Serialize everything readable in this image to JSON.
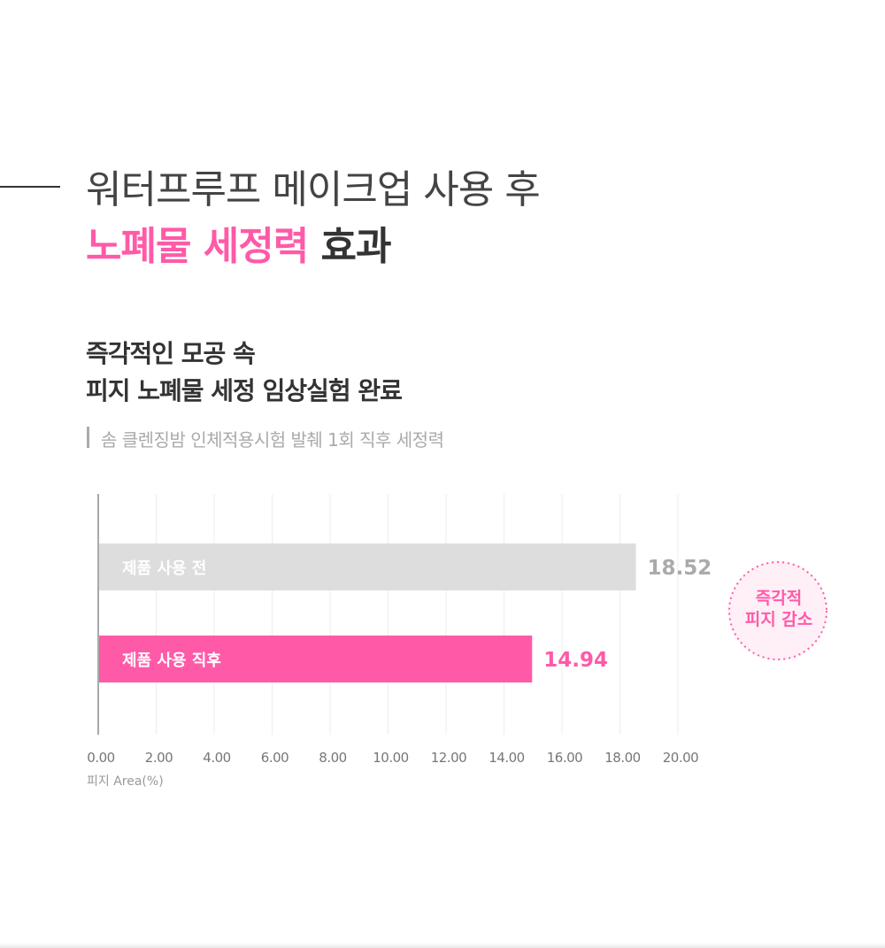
{
  "heading": {
    "line1": "워터프루프 메이크업 사용 후",
    "line2_highlight": "노폐물 세정력",
    "line2_rest": "효과"
  },
  "subheading": {
    "line1": "즉각적인 모공 속",
    "line2": "피지 노폐물 세정 임상실험 완료"
  },
  "caption": "솜 클렌징밤 인체적용시험 발췌 1회 직후 세정력",
  "badge": {
    "line1": "즉각적",
    "line2": "피지 감소"
  },
  "colors": {
    "pink": "#ff5aa8",
    "gray_bar": "#dddddd",
    "gray_text": "#aaaaaa",
    "dark_text": "#333333"
  },
  "chart_data": {
    "type": "bar",
    "orientation": "horizontal",
    "categories": [
      "제품 사용 전",
      "제품 사용 직후"
    ],
    "values": [
      18.52,
      14.94
    ],
    "value_labels": [
      "18.52",
      "14.94"
    ],
    "bar_colors": [
      "#dddddd",
      "#ff5aa8"
    ],
    "value_label_colors": [
      "#aaaaaa",
      "#ff5aa8"
    ],
    "x_ticks": [
      "0.00",
      "2.00",
      "4.00",
      "6.00",
      "8.00",
      "10.00",
      "12.00",
      "14.00",
      "16.00",
      "18.00",
      "20.00"
    ],
    "xlim": [
      0,
      20
    ],
    "xlabel": "피지 Area(%)",
    "grid": true
  }
}
